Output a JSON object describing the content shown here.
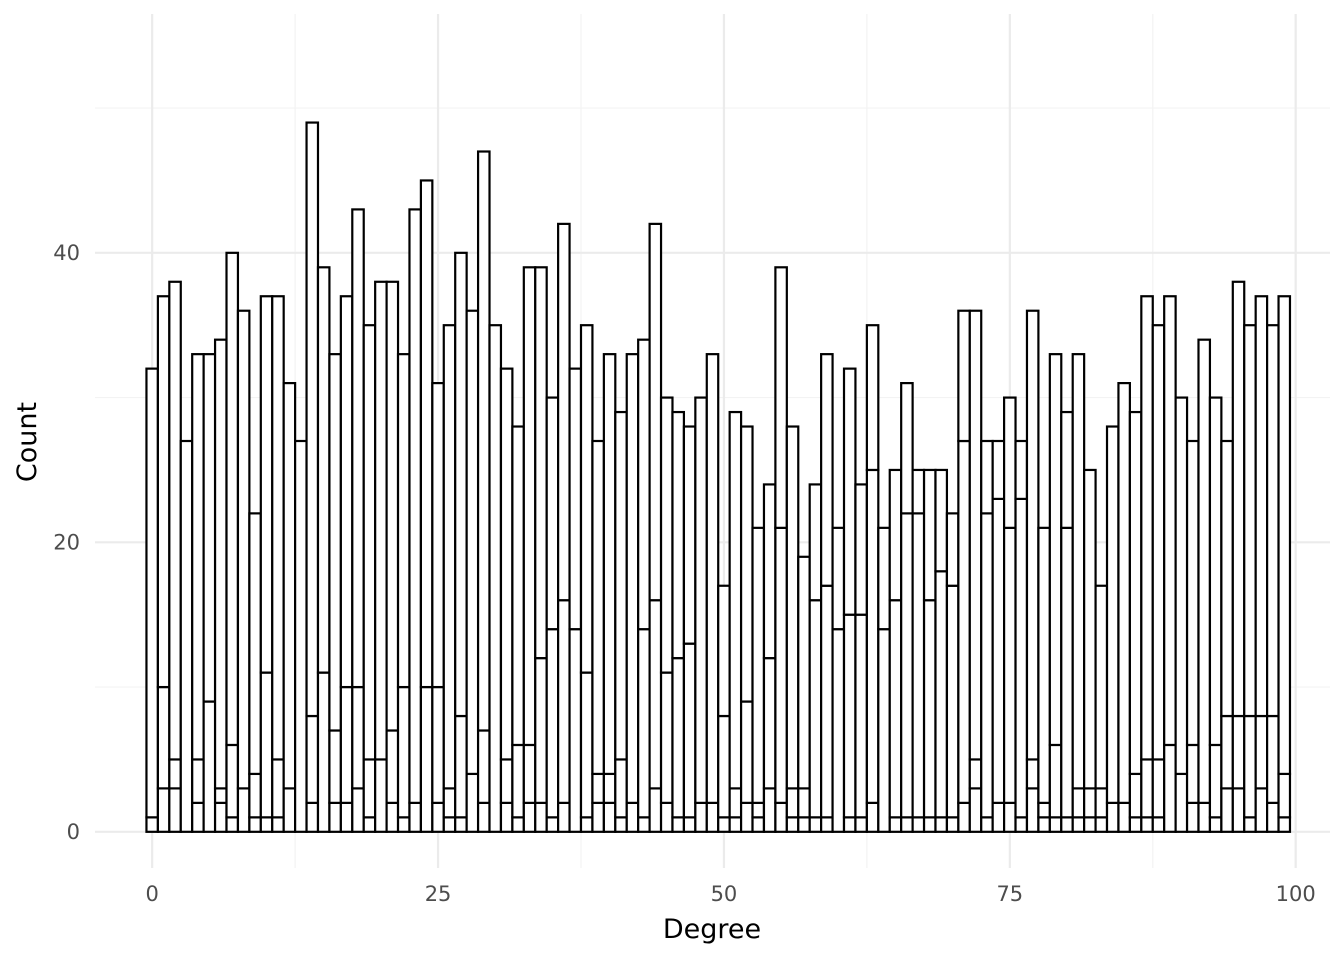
{
  "chart_data": {
    "type": "bar",
    "stacked": true,
    "title": "",
    "xlabel": "Degree",
    "ylabel": "Count",
    "xlim": [
      -5,
      103
    ],
    "ylim": [
      -2.5,
      56.5
    ],
    "x_ticks": [
      0,
      25,
      50,
      75,
      100
    ],
    "y_ticks": [
      0,
      20,
      40
    ],
    "grid": true,
    "legend": "none",
    "bar_fill": "#ffffff",
    "bar_outline": "#000000",
    "x": [
      0,
      1,
      2,
      3,
      4,
      5,
      6,
      7,
      8,
      9,
      10,
      11,
      12,
      13,
      14,
      15,
      16,
      17,
      18,
      19,
      20,
      21,
      22,
      23,
      24,
      25,
      26,
      27,
      28,
      29,
      30,
      31,
      32,
      33,
      34,
      35,
      36,
      37,
      38,
      39,
      40,
      41,
      42,
      43,
      44,
      45,
      46,
      47,
      48,
      49,
      50,
      51,
      52,
      53,
      54,
      55,
      56,
      57,
      58,
      59,
      60,
      61,
      62,
      63,
      64,
      65,
      66,
      67,
      68,
      69,
      70,
      71,
      72,
      73,
      74,
      75,
      76,
      77,
      78,
      79,
      80,
      81,
      82,
      83,
      84,
      85,
      86,
      87,
      88,
      89,
      90,
      91,
      92,
      93,
      94,
      95,
      96,
      97,
      98,
      99
    ],
    "series": [
      {
        "values": [
          1,
          3,
          3,
          0,
          2,
          0,
          2,
          1,
          0,
          1,
          1,
          1,
          0,
          0,
          2,
          0,
          2,
          2,
          3,
          1,
          0,
          2,
          1,
          2,
          0,
          2,
          1,
          1,
          0,
          2,
          0,
          2,
          1,
          2,
          2,
          1,
          2,
          0,
          1,
          2,
          2,
          1,
          2,
          1,
          3,
          2,
          1,
          1,
          2,
          2,
          1,
          1,
          2,
          1,
          3,
          2,
          1,
          1,
          1,
          1,
          0,
          1,
          1,
          2,
          0,
          1,
          1,
          1,
          1,
          1,
          1,
          2,
          3,
          1,
          2,
          2,
          1,
          3,
          1,
          1,
          1,
          1,
          1,
          1,
          2,
          2,
          1,
          1,
          1,
          0,
          4,
          2,
          2,
          1,
          3,
          3,
          1,
          3,
          2,
          1
        ]
      },
      {
        "values": [
          0,
          7,
          2,
          0,
          3,
          9,
          1,
          5,
          3,
          3,
          10,
          4,
          3,
          0,
          6,
          11,
          5,
          8,
          7,
          4,
          5,
          5,
          9,
          0,
          10,
          8,
          2,
          7,
          4,
          5,
          0,
          3,
          5,
          4,
          10,
          13,
          14,
          14,
          10,
          2,
          2,
          4,
          0,
          13,
          13,
          9,
          11,
          12,
          0,
          0,
          7,
          2,
          7,
          1,
          9,
          19,
          2,
          2,
          15,
          16,
          14,
          14,
          14,
          23,
          14,
          15,
          21,
          21,
          15,
          17,
          16,
          25,
          2,
          21,
          21,
          19,
          22,
          2,
          1,
          5,
          20,
          2,
          2,
          2,
          0,
          0,
          3,
          4,
          4,
          6,
          0,
          4,
          0,
          5,
          5,
          5,
          7,
          5,
          6,
          3
        ]
      },
      {
        "values": [
          31,
          27,
          33,
          27,
          28,
          24,
          31,
          34,
          33,
          18,
          26,
          32,
          28,
          27,
          41,
          28,
          26,
          27,
          33,
          30,
          33,
          31,
          23,
          41,
          35,
          21,
          32,
          32,
          32,
          40,
          35,
          27,
          22,
          33,
          27,
          16,
          26,
          18,
          24,
          23,
          29,
          24,
          31,
          20,
          26,
          19,
          17,
          15,
          28,
          31,
          9,
          26,
          19,
          19,
          12,
          18,
          25,
          16,
          8,
          16,
          7,
          17,
          9,
          10,
          7,
          9,
          9,
          3,
          9,
          7,
          5,
          9,
          31,
          5,
          4,
          9,
          4,
          31,
          19,
          27,
          8,
          30,
          22,
          14,
          26,
          29,
          25,
          32,
          30,
          31,
          26,
          21,
          32,
          24,
          19,
          30,
          27,
          29,
          27,
          33
        ]
      }
    ]
  }
}
